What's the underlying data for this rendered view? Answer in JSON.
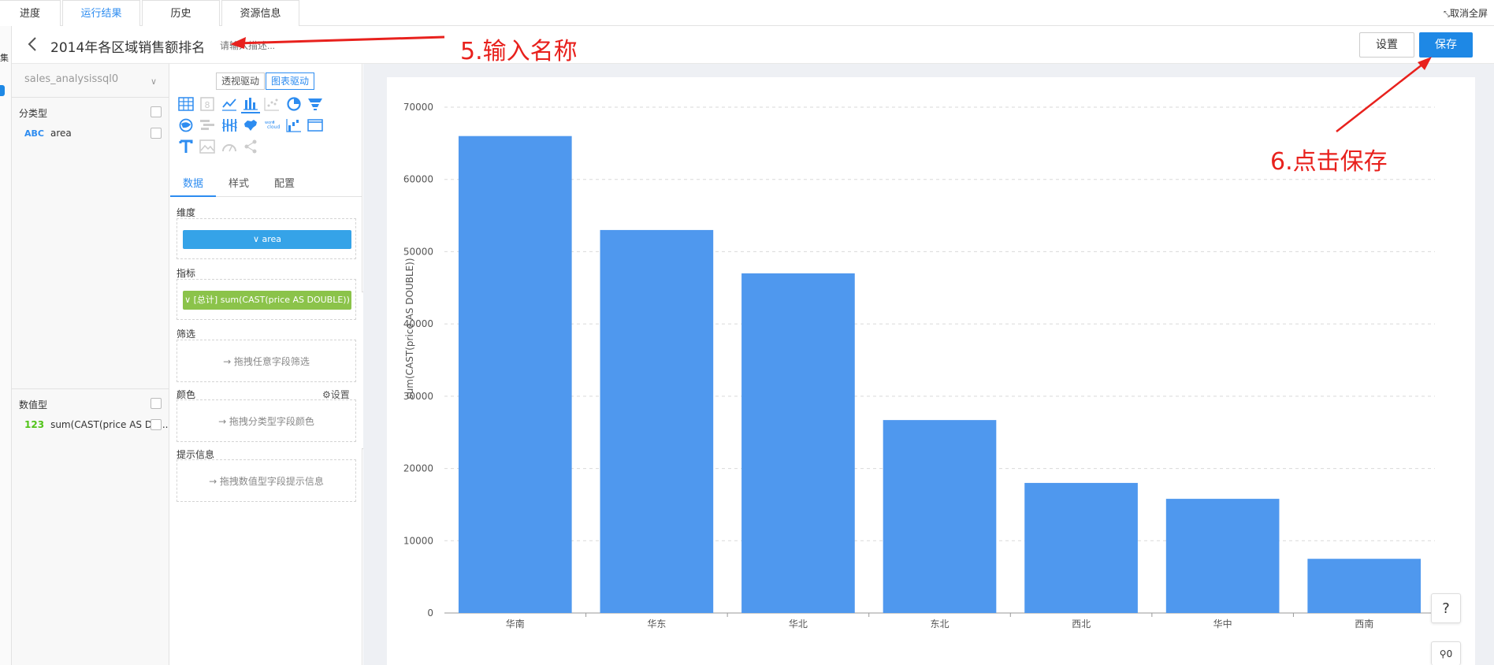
{
  "tabs": [
    {
      "label": "进度"
    },
    {
      "label": "运行结果"
    },
    {
      "label": "历史"
    },
    {
      "label": "资源信息"
    }
  ],
  "fullscreen_label": "取消全屏",
  "rail_text": "集",
  "header": {
    "title": "2014年各区域销售额排名",
    "description_placeholder": "请输入描述...",
    "settings_label": "设置",
    "save_label": "保存"
  },
  "annotations": {
    "step5": "5.输入名称",
    "step6": "6.点击保存"
  },
  "fields_panel": {
    "datasource": "sales_analysissql0",
    "categorical_label": "分类型",
    "categorical_fields": [
      {
        "type": "ABC",
        "name": "area"
      }
    ],
    "numeric_label": "数值型",
    "numeric_fields": [
      {
        "type": "123",
        "name": "sum(CAST(price AS DO..."
      }
    ]
  },
  "config_panel": {
    "mode_pivot": "透视驱动",
    "mode_chart": "图表驱动",
    "subtabs": [
      "数据",
      "样式",
      "配置"
    ],
    "dimension_label": "维度",
    "dimension_pill": "∨ area",
    "metric_label": "指标",
    "metric_pill": "∨ [总计] sum(CAST(price AS DOUBLE))",
    "filter_label": "筛选",
    "filter_hint": "→ 拖拽任意字段筛选",
    "color_label": "颜色",
    "color_settings": "设置",
    "color_hint": "→ 拖拽分类型字段颜色",
    "tooltip_label": "提示信息",
    "tooltip_hint": "→ 拖拽数值型字段提示信息"
  },
  "colors": {
    "accent": "#2d8cf0",
    "bar": "#4f98ee",
    "pill_blue": "#35a3e8",
    "pill_green": "#8bc34a",
    "annotation": "#e8211d"
  },
  "floating": {
    "help": "?",
    "zoom": "0"
  },
  "chart_data": {
    "type": "bar",
    "categories": [
      "华南",
      "华东",
      "华北",
      "东北",
      "西北",
      "华中",
      "西南"
    ],
    "values": [
      66000,
      53000,
      47000,
      26700,
      18000,
      15800,
      7500
    ],
    "ylabel": "sum(CAST(price AS DOUBLE))",
    "xlabel": "",
    "ylim": [
      0,
      70000
    ],
    "yticks": [
      0,
      10000,
      20000,
      30000,
      40000,
      50000,
      60000,
      70000
    ],
    "grid": true
  }
}
